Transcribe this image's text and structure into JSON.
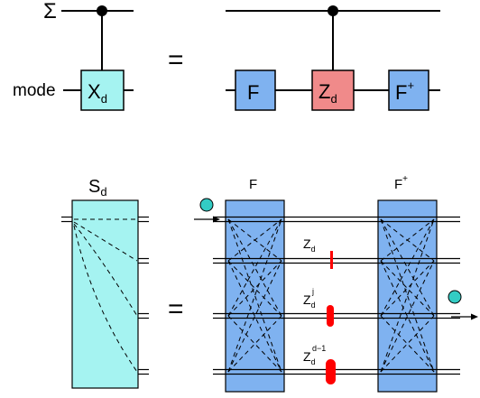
{
  "top": {
    "sigma_label": "Σ",
    "mode_label": "mode",
    "equals": "=",
    "gate_xd": {
      "base": "X",
      "sub": "d",
      "color": "#a5f3f1"
    },
    "gate_f": {
      "base": "F",
      "color": "#7fb2f0"
    },
    "gate_zd": {
      "base": "Z",
      "sub": "d",
      "color": "#f08a8a"
    },
    "gate_fdag": {
      "base": "F",
      "sup": "+",
      "color": "#7fb2f0"
    }
  },
  "bottom": {
    "sd": {
      "base": "S",
      "sub": "d",
      "color": "#a5f3f1"
    },
    "equals": "=",
    "f_label": {
      "base": "F"
    },
    "fdag_label": {
      "base": "F",
      "sup": "+"
    },
    "z1": {
      "base": "Z",
      "sub": "d"
    },
    "z2": {
      "base": "Z",
      "sub": "d",
      "sup": "j"
    },
    "z3": {
      "base": "Z",
      "sub": "d",
      "sup": "d−1"
    },
    "box_color": "#7fb2f0",
    "phase_color": "#ff0000",
    "photon_color": "#33ccc4"
  }
}
